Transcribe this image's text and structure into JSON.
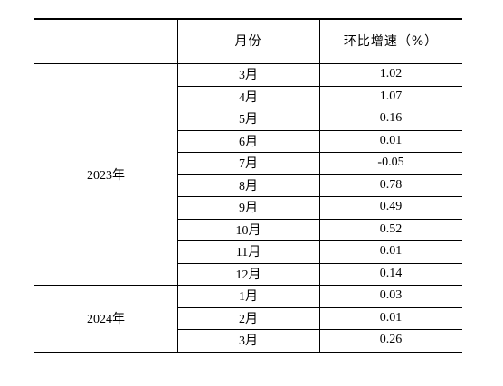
{
  "table": {
    "headers": [
      "",
      "月份",
      "环比增速（%）"
    ],
    "groups": [
      {
        "year": "2023年",
        "rows": [
          {
            "month": "3月",
            "value": "1.02"
          },
          {
            "month": "4月",
            "value": "1.07"
          },
          {
            "month": "5月",
            "value": "0.16"
          },
          {
            "month": "6月",
            "value": "0.01"
          },
          {
            "month": "7月",
            "value": "-0.05"
          },
          {
            "month": "8月",
            "value": "0.78"
          },
          {
            "month": "9月",
            "value": "0.49"
          },
          {
            "month": "10月",
            "value": "0.52"
          },
          {
            "month": "11月",
            "value": "0.01"
          },
          {
            "month": "12月",
            "value": "0.14"
          }
        ]
      },
      {
        "year": "2024年",
        "rows": [
          {
            "month": "1月",
            "value": "0.03"
          },
          {
            "month": "2月",
            "value": "0.01"
          },
          {
            "month": "3月",
            "value": "0.26"
          }
        ]
      }
    ]
  }
}
